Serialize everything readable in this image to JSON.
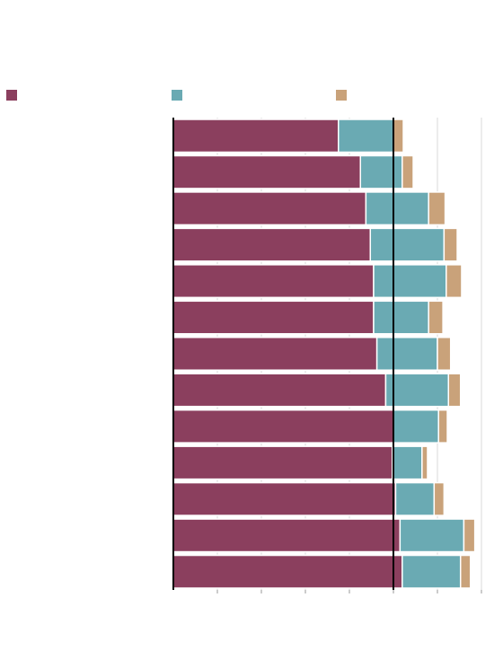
{
  "colors": {
    "series_a": "#8b3f5e",
    "series_b": "#6aaab3",
    "series_c": "#c9a27a",
    "reference": "#000000",
    "grid": "#d9d9d9",
    "axis": "#000000"
  },
  "legend": [
    {
      "name": "",
      "color": "#8b3f5e"
    },
    {
      "name": "",
      "color": "#6aaab3"
    },
    {
      "name": "",
      "color": "#c9a27a"
    }
  ],
  "chart_data": {
    "type": "bar",
    "orientation": "horizontal",
    "stacked": true,
    "categories": [
      "",
      "",
      "",
      "",
      "",
      "",
      "",
      "",
      "",
      "",
      "",
      "",
      ""
    ],
    "series": [
      {
        "values": [
          75,
          85,
          87.5,
          89.5,
          91,
          91,
          92.5,
          96.5,
          100,
          99.5,
          101,
          103,
          104
        ]
      },
      {
        "values": [
          25,
          19,
          28.5,
          33.5,
          33,
          25,
          27.5,
          28.5,
          20.5,
          13.5,
          17.5,
          29,
          26.5
        ]
      },
      {
        "values": [
          4.5,
          5,
          7.5,
          6,
          7,
          6.5,
          6,
          5.5,
          4,
          2.5,
          4.5,
          5,
          4.5
        ]
      }
    ],
    "xlim": [
      0,
      140
    ],
    "x_gridlines": [
      0,
      20,
      40,
      60,
      80,
      100,
      120,
      140
    ],
    "reference_line": 100,
    "grid": true,
    "legend_position": "top"
  }
}
